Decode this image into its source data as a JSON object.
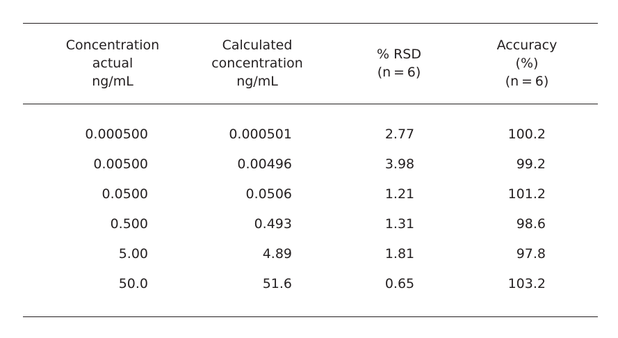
{
  "table": {
    "headers": [
      [
        "Concentration",
        "actual",
        "ng/mL"
      ],
      [
        "Calculated",
        "concentration",
        "ng/mL"
      ],
      [
        "% RSD",
        "(n = 6)"
      ],
      [
        "Accuracy",
        "(%)",
        "(n = 6)"
      ]
    ],
    "rows": [
      [
        "0.000500",
        "0.000501",
        "2.77",
        "100.2"
      ],
      [
        "0.00500",
        "0.00496",
        "3.98",
        "99.2"
      ],
      [
        "0.0500",
        "0.0506",
        "1.21",
        "101.2"
      ],
      [
        "0.500",
        "0.493",
        "1.31",
        "98.6"
      ],
      [
        "5.00",
        "4.89",
        "1.81",
        "97.8"
      ],
      [
        "50.0",
        "51.6",
        "0.65",
        "103.2"
      ]
    ]
  }
}
